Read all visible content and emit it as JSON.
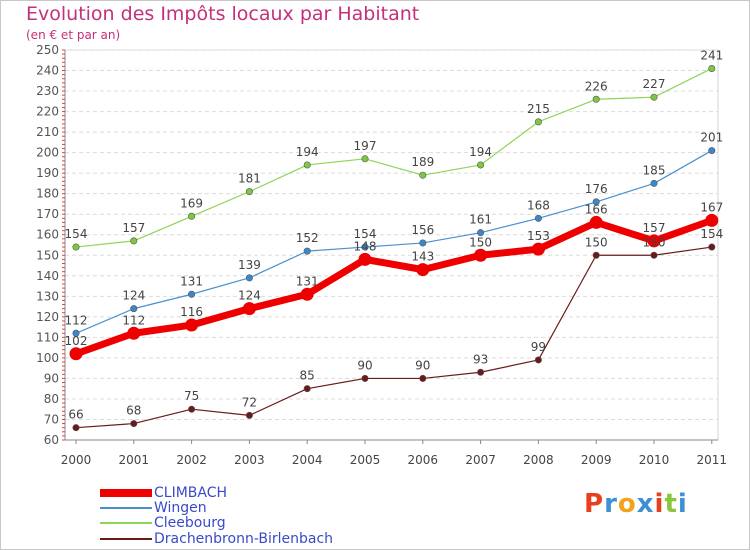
{
  "header": {
    "title": "Evolution des Impôts locaux par Habitant",
    "subtitle": "(en € et par an)"
  },
  "brand": {
    "name": "Proxiti",
    "letters": [
      {
        "char": "P",
        "color": "#e8401e"
      },
      {
        "char": "r",
        "color": "#3e8fd6"
      },
      {
        "char": "o",
        "color": "#f3a21b"
      },
      {
        "char": "x",
        "color": "#3e8fd6"
      },
      {
        "char": "i",
        "color": "#e8401e"
      },
      {
        "char": "t",
        "color": "#8cc43c"
      },
      {
        "char": "i",
        "color": "#3e8fd6"
      }
    ]
  },
  "chart_data": {
    "type": "line",
    "title": "Evolution des Impôts locaux par Habitant",
    "subtitle": "(en € et par an)",
    "xlabel": "",
    "ylabel": "",
    "x": [
      "2000",
      "2001",
      "2002",
      "2003",
      "2004",
      "2005",
      "2006",
      "2007",
      "2008",
      "2009",
      "2010",
      "2011"
    ],
    "ylim": [
      60,
      250
    ],
    "yticks": [
      60,
      70,
      80,
      90,
      100,
      110,
      120,
      130,
      140,
      150,
      160,
      170,
      180,
      190,
      200,
      210,
      220,
      230,
      240,
      250
    ],
    "grid": "horizontal",
    "legend_position": "bottom-left",
    "series": [
      {
        "name": "CLIMBACH",
        "color": "#ee0000",
        "values": [
          102,
          112,
          116,
          124,
          131,
          148,
          143,
          150,
          153,
          166,
          157,
          167
        ]
      },
      {
        "name": "Wingen",
        "color": "#4a90d0",
        "values": [
          112,
          124,
          131,
          139,
          152,
          154,
          156,
          161,
          168,
          176,
          185,
          201
        ]
      },
      {
        "name": "Cleebourg",
        "color": "#8ed558",
        "values": [
          154,
          157,
          169,
          181,
          194,
          197,
          189,
          194,
          215,
          226,
          227,
          241
        ]
      },
      {
        "name": "Drachenbronn-Birlenbach",
        "color": "#6b1a1a",
        "values": [
          66,
          68,
          75,
          72,
          85,
          90,
          90,
          93,
          99,
          150,
          150,
          154
        ]
      }
    ]
  }
}
